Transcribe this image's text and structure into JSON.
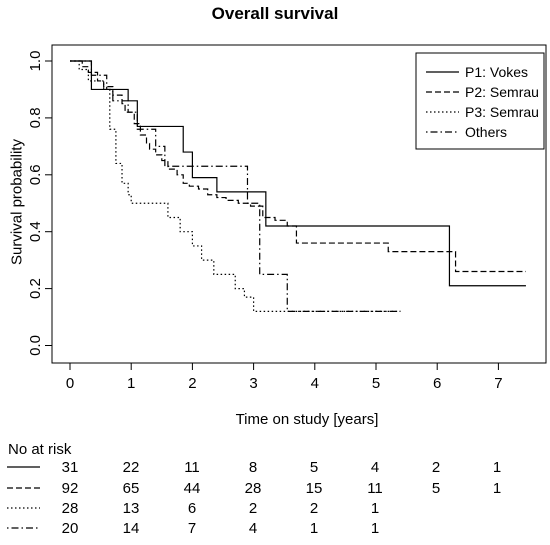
{
  "chart_data": {
    "type": "line",
    "title": "Overall survival",
    "xlabel": "Time on study [years]",
    "ylabel": "Survival probability",
    "xlim": [
      0,
      7.6
    ],
    "ylim": [
      0,
      1.05
    ],
    "xticks": [
      0,
      1,
      2,
      3,
      4,
      5,
      6,
      7
    ],
    "yticks": [
      0.0,
      0.2,
      0.4,
      0.6,
      0.8,
      1.0
    ],
    "ytick_labels": [
      "0.0",
      "0.2",
      "0.4",
      "0.6",
      "0.8",
      "1.0"
    ],
    "grid": false,
    "legend_position": "top-right",
    "series": [
      {
        "name": "P1: Vokes",
        "linestyle": "solid",
        "x": [
          0,
          0.35,
          0.45,
          0.95,
          1.1,
          1.85,
          2.0,
          2.4,
          3.2,
          6.2,
          7.45
        ],
        "y": [
          1.0,
          0.9,
          0.9,
          0.86,
          0.77,
          0.68,
          0.59,
          0.54,
          0.42,
          0.21,
          0.21
        ]
      },
      {
        "name": "P2: Semrau",
        "linestyle": "dashed",
        "x": [
          0,
          0.2,
          0.3,
          0.45,
          0.55,
          0.7,
          0.85,
          0.9,
          1.05,
          1.15,
          1.25,
          1.3,
          1.4,
          1.5,
          1.6,
          1.75,
          1.85,
          1.95,
          2.1,
          2.25,
          2.4,
          2.55,
          2.75,
          2.95,
          3.15,
          3.35,
          3.55,
          3.7,
          5.2,
          6.3,
          7.45
        ],
        "y": [
          1.0,
          0.98,
          0.96,
          0.93,
          0.91,
          0.88,
          0.85,
          0.82,
          0.78,
          0.74,
          0.71,
          0.69,
          0.67,
          0.65,
          0.62,
          0.6,
          0.57,
          0.56,
          0.55,
          0.53,
          0.52,
          0.51,
          0.5,
          0.49,
          0.45,
          0.44,
          0.42,
          0.36,
          0.33,
          0.26,
          0.26
        ]
      },
      {
        "name": "P3: Semrau",
        "linestyle": "dotted",
        "x": [
          0,
          0.15,
          0.3,
          0.55,
          0.65,
          0.75,
          0.85,
          0.95,
          1.0,
          1.6,
          1.8,
          2.0,
          2.15,
          2.35,
          2.7,
          2.85,
          3.0,
          5.4
        ],
        "y": [
          1.0,
          0.97,
          0.93,
          0.9,
          0.76,
          0.64,
          0.57,
          0.53,
          0.5,
          0.45,
          0.4,
          0.35,
          0.3,
          0.25,
          0.2,
          0.17,
          0.12,
          0.12
        ]
      },
      {
        "name": "Others",
        "linestyle": "dotdash",
        "x": [
          0,
          0.35,
          0.6,
          0.7,
          0.95,
          1.1,
          1.4,
          1.55,
          1.85,
          2.9,
          3.1,
          3.55,
          5.4
        ],
        "y": [
          1.0,
          0.95,
          0.9,
          0.86,
          0.82,
          0.76,
          0.7,
          0.63,
          0.63,
          0.5,
          0.25,
          0.12,
          0.12
        ]
      }
    ],
    "risk_table": {
      "title": "No at risk",
      "rows": [
        {
          "linestyle": "solid",
          "values": [
            "31",
            "22",
            "11",
            "8",
            "5",
            "4",
            "2",
            "1"
          ]
        },
        {
          "linestyle": "dashed",
          "values": [
            "92",
            "65",
            "44",
            "28",
            "15",
            "11",
            "5",
            "1"
          ]
        },
        {
          "linestyle": "dotted",
          "values": [
            "28",
            "13",
            "6",
            "2",
            "2",
            "1"
          ]
        },
        {
          "linestyle": "dotdash",
          "values": [
            "20",
            "14",
            "7",
            "4",
            "1",
            "1"
          ]
        }
      ]
    }
  }
}
